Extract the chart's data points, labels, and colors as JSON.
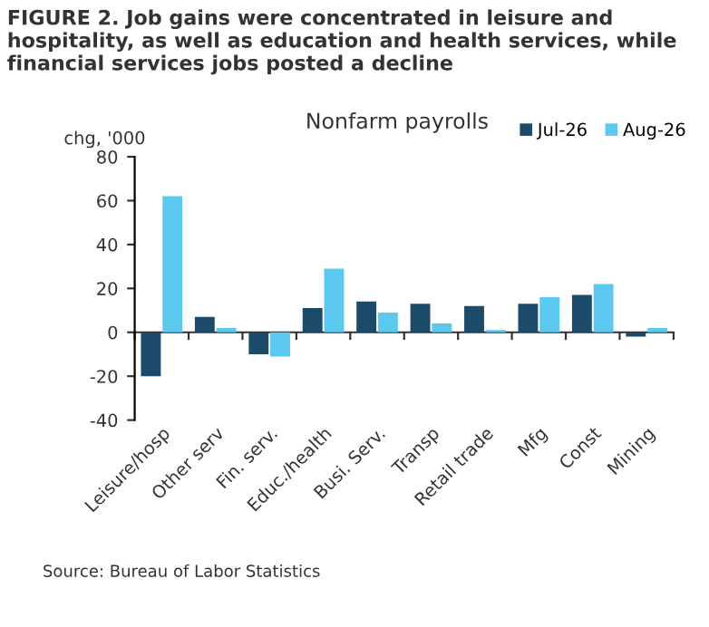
{
  "chart_data": {
    "type": "bar",
    "title": "FIGURE 2. Job gains were concentrated in leisure and hospitality, as well as education and health services, while financial services jobs posted a decline",
    "subtitle": "Nonfarm payrolls",
    "ylabel": "chg, '000",
    "categories": [
      "Leisure/hosp",
      "Other serv",
      "Fin. serv.",
      "Educ./health",
      "Busi. Serv.",
      "Transp",
      "Retail trade",
      "Mfg",
      "Const",
      "Mining"
    ],
    "series": [
      {
        "name": "Jul-26",
        "color": "#1b4a6b",
        "values": [
          -20,
          7,
          -10,
          11,
          14,
          13,
          12,
          13,
          17,
          -2
        ]
      },
      {
        "name": "Aug-26",
        "color": "#5bc8ef",
        "values": [
          62,
          2,
          -11,
          29,
          9,
          4,
          1,
          16,
          22,
          2
        ]
      }
    ],
    "ylim": [
      -40,
      80
    ],
    "yticks": [
      -40,
      -20,
      0,
      20,
      40,
      60,
      80
    ],
    "legend": "top right",
    "annotations": [
      "Source: Bureau of Labor Statistics"
    ]
  }
}
